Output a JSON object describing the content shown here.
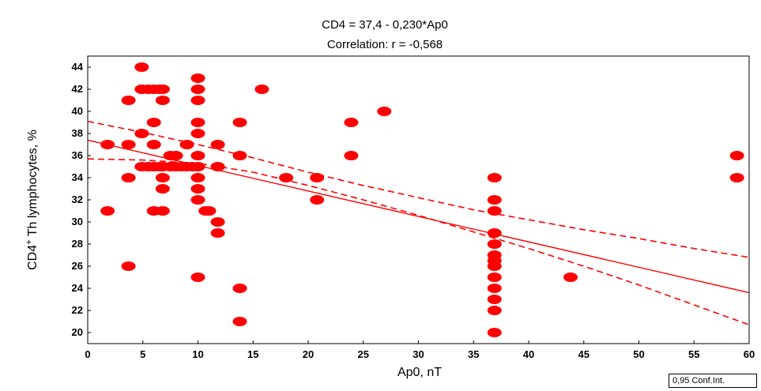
{
  "chart_data": {
    "type": "scatter",
    "title": "CD4 = 37,4 - 0,230*Ap0",
    "subtitle": "Correlation: r = -0,568",
    "xlabel": "Ap0, nT",
    "ylabel_main": "CD4",
    "ylabel_sup": "+",
    "ylabel_rest": " Th lymphocytes, %",
    "xlim": [
      0,
      60
    ],
    "ylim": [
      19,
      45
    ],
    "x_ticks": [
      "0",
      "5",
      "10",
      "15",
      "20",
      "25",
      "30",
      "35",
      "40",
      "45",
      "50",
      "55",
      "60"
    ],
    "y_ticks": [
      "20",
      "22",
      "24",
      "26",
      "28",
      "30",
      "32",
      "34",
      "36",
      "38",
      "40",
      "42",
      "44"
    ],
    "grid": false,
    "legend": "0,95 Conf.Int.",
    "color": "#ff0000",
    "regression": {
      "intercept": 37.4,
      "slope": -0.23
    },
    "confidence_band": {
      "x": [
        0,
        5,
        10,
        15,
        20,
        25,
        30,
        35,
        40,
        45,
        50,
        55,
        60
      ],
      "upper": [
        39.1,
        38.1,
        37.0,
        35.8,
        34.5,
        33.3,
        32.2,
        31.1,
        30.2,
        29.3,
        28.5,
        27.6,
        26.8
      ],
      "lower": [
        35.7,
        35.6,
        35.3,
        34.5,
        33.3,
        32.0,
        30.6,
        29.1,
        27.6,
        26.0,
        24.3,
        22.5,
        20.7
      ]
    },
    "points": [
      [
        1.8,
        37
      ],
      [
        1.8,
        31
      ],
      [
        3.7,
        41
      ],
      [
        3.7,
        37
      ],
      [
        3.7,
        34
      ],
      [
        3.7,
        26
      ],
      [
        4.9,
        44
      ],
      [
        4.9,
        42
      ],
      [
        4.9,
        38
      ],
      [
        4.9,
        35
      ],
      [
        5.5,
        42
      ],
      [
        5.5,
        35
      ],
      [
        6,
        42
      ],
      [
        6,
        39
      ],
      [
        6,
        37
      ],
      [
        6,
        31
      ],
      [
        6,
        35
      ],
      [
        6.5,
        42
      ],
      [
        6.5,
        35
      ],
      [
        6.8,
        42
      ],
      [
        6.8,
        41
      ],
      [
        6.8,
        35
      ],
      [
        6.8,
        34
      ],
      [
        6.8,
        33
      ],
      [
        6.8,
        31
      ],
      [
        7.5,
        36
      ],
      [
        7.5,
        35
      ],
      [
        8,
        36
      ],
      [
        8,
        35
      ],
      [
        8.5,
        35
      ],
      [
        9,
        37
      ],
      [
        9,
        35
      ],
      [
        9.5,
        35
      ],
      [
        10,
        43
      ],
      [
        10,
        42
      ],
      [
        10,
        41
      ],
      [
        10,
        39
      ],
      [
        10,
        38
      ],
      [
        10,
        36
      ],
      [
        10,
        35
      ],
      [
        10,
        34
      ],
      [
        10,
        33
      ],
      [
        10,
        32
      ],
      [
        10,
        25
      ],
      [
        10.7,
        31
      ],
      [
        11,
        31
      ],
      [
        11.8,
        37
      ],
      [
        11.8,
        35
      ],
      [
        11.8,
        30
      ],
      [
        11.8,
        29
      ],
      [
        13.8,
        39
      ],
      [
        13.8,
        36
      ],
      [
        13.8,
        24
      ],
      [
        13.8,
        21
      ],
      [
        15.8,
        42
      ],
      [
        18,
        34
      ],
      [
        20.8,
        34
      ],
      [
        20.8,
        32
      ],
      [
        23.9,
        39
      ],
      [
        23.9,
        36
      ],
      [
        26.9,
        40
      ],
      [
        36.9,
        34
      ],
      [
        36.9,
        32
      ],
      [
        36.9,
        31
      ],
      [
        36.9,
        29
      ],
      [
        36.9,
        28
      ],
      [
        36.9,
        27
      ],
      [
        36.9,
        26.5
      ],
      [
        36.9,
        26
      ],
      [
        36.9,
        25
      ],
      [
        36.9,
        24
      ],
      [
        36.9,
        23
      ],
      [
        36.9,
        22
      ],
      [
        36.9,
        20
      ],
      [
        43.8,
        25
      ],
      [
        58.9,
        36
      ],
      [
        58.9,
        34
      ]
    ]
  }
}
